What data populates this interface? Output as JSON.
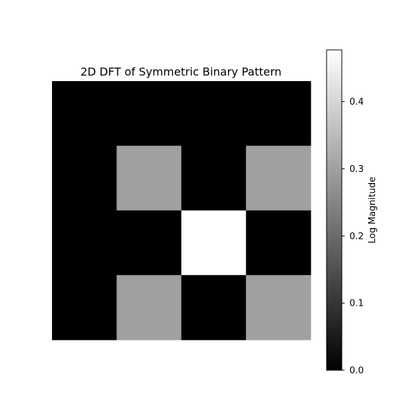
{
  "chart_data": {
    "type": "heatmap",
    "title": "2D DFT of Symmetric Binary Pattern",
    "colormap": "gray",
    "rows": 4,
    "cols": 4,
    "values": [
      [
        0.0,
        0.0,
        0.0,
        0.0
      ],
      [
        0.0,
        0.3,
        0.0,
        0.3
      ],
      [
        0.0,
        0.0,
        0.477,
        0.0
      ],
      [
        0.0,
        0.3,
        0.0,
        0.3
      ]
    ],
    "colorbar": {
      "label": "Log Magnitude",
      "range": [
        0.0,
        0.477
      ],
      "ticks": [
        0.0,
        0.1,
        0.2,
        0.3,
        0.4
      ],
      "tick_labels": [
        "0.0",
        "0.1",
        "0.2",
        "0.3",
        "0.4"
      ]
    },
    "grid": false,
    "axes_visible": false
  }
}
